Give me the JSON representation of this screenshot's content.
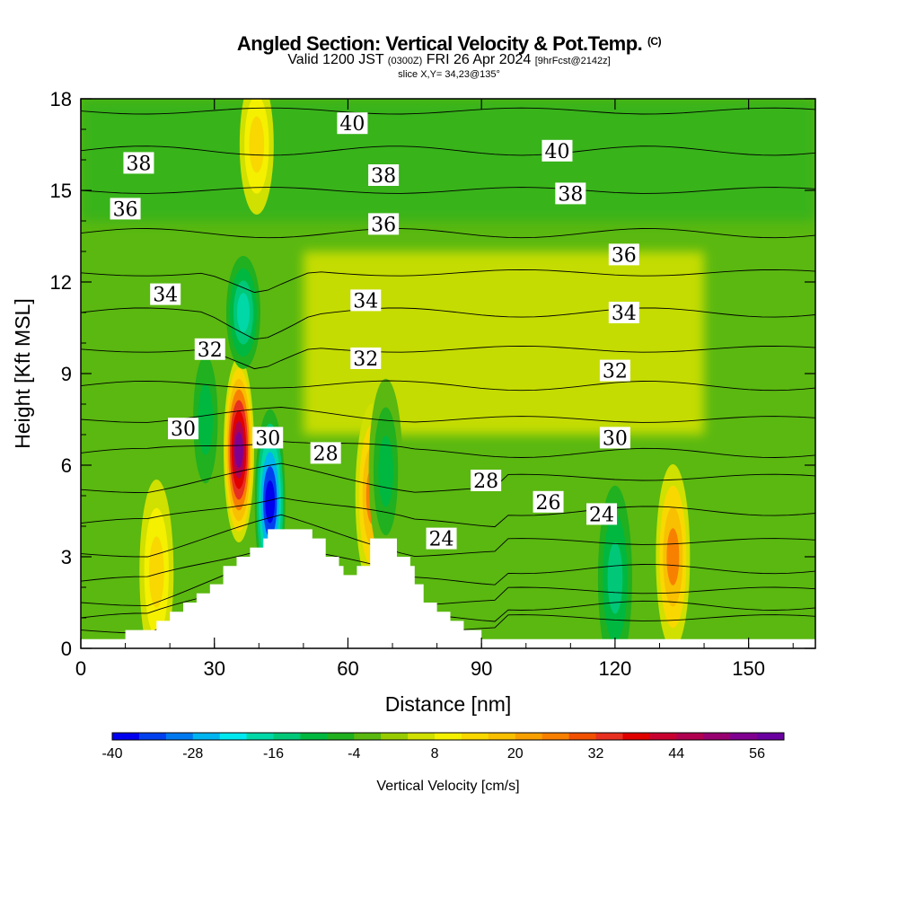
{
  "title": "Angled Section: Vertical Velocity & Pot.Temp.",
  "title_mark": "(C)",
  "subtitle": {
    "part1": "Valid 1200 JST",
    "part2": "(0300Z)",
    "part3": "FRI 26 Apr 2024",
    "part4": "[9hrFcst@2142z]"
  },
  "slice": "slice X,Y= 34,23@135°",
  "chart_data": {
    "type": "heatmap",
    "title": "Angled Section: Vertical Velocity & Pot.Temp.",
    "xlabel": "Distance [nm]",
    "ylabel": "Height [Kft MSL]",
    "xlim": [
      0,
      165
    ],
    "ylim": [
      0,
      18
    ],
    "x_ticks": [
      "0",
      "30",
      "60",
      "90",
      "120",
      "150"
    ],
    "y_ticks": [
      "0",
      "3",
      "6",
      "9",
      "12",
      "15",
      "18"
    ],
    "colorbar": {
      "label": "Vertical Velocity [cm/s]",
      "tick_labels": [
        "-40",
        "-28",
        "-16",
        "-4",
        "8",
        "20",
        "32",
        "44",
        "56"
      ],
      "min": -40,
      "max": 60,
      "step": 4,
      "colors": [
        "#0000ee",
        "#0040ee",
        "#0078f0",
        "#00b4f0",
        "#00e8f0",
        "#00d8a8",
        "#00c878",
        "#00b840",
        "#20b020",
        "#5ab810",
        "#98cc00",
        "#d0e000",
        "#f4f000",
        "#f8d800",
        "#f8c000",
        "#f8a000",
        "#f88000",
        "#f05000",
        "#e83020",
        "#e00000",
        "#c80030",
        "#b00050",
        "#980070",
        "#800090",
        "#6a00a0"
      ]
    },
    "contour_labels": [
      {
        "text": "40",
        "x": 61,
        "y": 17.2
      },
      {
        "text": "38",
        "x": 13,
        "y": 15.9
      },
      {
        "text": "38",
        "x": 68,
        "y": 15.5
      },
      {
        "text": "36",
        "x": 10,
        "y": 14.4
      },
      {
        "text": "36",
        "x": 68,
        "y": 13.9
      },
      {
        "text": "34",
        "x": 19,
        "y": 11.6
      },
      {
        "text": "34",
        "x": 64,
        "y": 11.4
      },
      {
        "text": "32",
        "x": 29,
        "y": 9.8
      },
      {
        "text": "32",
        "x": 64,
        "y": 9.5
      },
      {
        "text": "30",
        "x": 23,
        "y": 7.2
      },
      {
        "text": "30",
        "x": 42,
        "y": 6.9
      },
      {
        "text": "28",
        "x": 55,
        "y": 6.4
      },
      {
        "text": "40",
        "x": 107,
        "y": 16.3
      },
      {
        "text": "38",
        "x": 110,
        "y": 14.9
      },
      {
        "text": "36",
        "x": 122,
        "y": 12.9
      },
      {
        "text": "34",
        "x": 122,
        "y": 11.0
      },
      {
        "text": "32",
        "x": 120,
        "y": 9.1
      },
      {
        "text": "30",
        "x": 120,
        "y": 6.9
      },
      {
        "text": "28",
        "x": 91,
        "y": 5.5
      },
      {
        "text": "26",
        "x": 105,
        "y": 4.8
      },
      {
        "text": "24",
        "x": 117,
        "y": 4.4
      },
      {
        "text": "24",
        "x": 81,
        "y": 3.6
      }
    ],
    "updrafts_cm_s": [
      {
        "x": 35.5,
        "y": 6.5,
        "w": 52
      },
      {
        "x": 42.5,
        "y": 4.8,
        "w": -40
      },
      {
        "x": 65.5,
        "y": 5.0,
        "w": 24
      },
      {
        "x": 68.5,
        "y": 5.8,
        "w": -12
      },
      {
        "x": 133.0,
        "y": 3.0,
        "w": 26
      },
      {
        "x": 39.5,
        "y": 16.5,
        "w": 14
      },
      {
        "x": 36.5,
        "y": 11.0,
        "w": -20
      },
      {
        "x": 120.0,
        "y": 2.3,
        "w": -16
      },
      {
        "x": 28.0,
        "y": 7.5,
        "w": -12
      },
      {
        "x": 17.0,
        "y": 2.5,
        "w": 14
      }
    ],
    "terrain": [
      [
        0,
        0.3
      ],
      [
        10,
        0.3
      ],
      [
        10,
        0.6
      ],
      [
        17,
        0.6
      ],
      [
        17,
        0.9
      ],
      [
        20,
        0.9
      ],
      [
        20,
        1.2
      ],
      [
        23,
        1.2
      ],
      [
        23,
        1.5
      ],
      [
        26,
        1.5
      ],
      [
        26,
        1.8
      ],
      [
        29,
        1.8
      ],
      [
        29,
        2.1
      ],
      [
        32,
        2.1
      ],
      [
        32,
        2.7
      ],
      [
        35,
        2.7
      ],
      [
        35,
        3.0
      ],
      [
        38,
        3.0
      ],
      [
        38,
        3.3
      ],
      [
        41,
        3.3
      ],
      [
        41,
        3.6
      ],
      [
        42,
        3.6
      ],
      [
        42,
        3.9
      ],
      [
        52,
        3.9
      ],
      [
        52,
        3.6
      ],
      [
        55,
        3.6
      ],
      [
        55,
        3.0
      ],
      [
        58,
        3.0
      ],
      [
        58,
        2.7
      ],
      [
        59,
        2.7
      ],
      [
        59,
        2.4
      ],
      [
        62,
        2.4
      ],
      [
        62,
        2.7
      ],
      [
        65,
        2.7
      ],
      [
        65,
        3.6
      ],
      [
        71,
        3.6
      ],
      [
        71,
        3.0
      ],
      [
        74,
        3.0
      ],
      [
        74,
        2.7
      ],
      [
        75,
        2.7
      ],
      [
        75,
        2.1
      ],
      [
        77,
        2.1
      ],
      [
        77,
        1.5
      ],
      [
        80,
        1.5
      ],
      [
        80,
        1.2
      ],
      [
        83,
        1.2
      ],
      [
        83,
        0.9
      ],
      [
        86,
        0.9
      ],
      [
        86,
        0.6
      ],
      [
        90,
        0.6
      ],
      [
        90,
        0.3
      ],
      [
        165,
        0.3
      ]
    ]
  }
}
